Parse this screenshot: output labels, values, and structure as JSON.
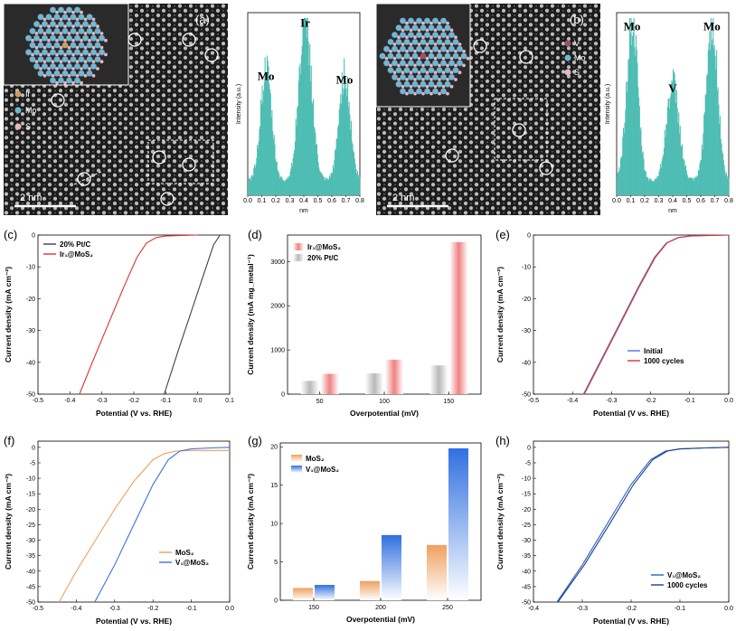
{
  "panels": {
    "a": {
      "label": "(a)",
      "scale_bar": "2 nm",
      "legend": [
        "Ir",
        "Mo",
        "S"
      ],
      "colors": {
        "Ir": "#c8a060",
        "Mo": "#6fb7d6",
        "S": "#e8b4c0"
      }
    },
    "b": {
      "label": "(b)",
      "scale_bar": "2 nm",
      "legend": [
        "V",
        "Mo",
        "S"
      ],
      "colors": {
        "V": "#9b4f6f",
        "Mo": "#6fb7d6",
        "S": "#e8b4c0"
      }
    },
    "c": {
      "label": "(c)"
    },
    "d": {
      "label": "(d)"
    },
    "e": {
      "label": "(e)"
    },
    "f": {
      "label": "(f)"
    },
    "g": {
      "label": "(g)"
    },
    "h": {
      "label": "(h)"
    }
  },
  "chart_data": [
    {
      "id": "a-profile",
      "type": "area",
      "xlabel": "nm",
      "ylabel": "Intensity (a.u.)",
      "xlim": [
        0.0,
        0.8
      ],
      "xticks": [
        "0.0",
        "0.1",
        "0.2",
        "0.3",
        "0.4",
        "0.5",
        "0.6",
        "0.7",
        "0.8"
      ],
      "peak_labels": [
        {
          "text": "Mo",
          "x": 0.13
        },
        {
          "text": "Ir",
          "x": 0.41
        },
        {
          "text": "Mo",
          "x": 0.69
        }
      ],
      "peaks": [
        {
          "x": 0.13,
          "h": 0.62,
          "w": 0.04
        },
        {
          "x": 0.41,
          "h": 0.92,
          "w": 0.045
        },
        {
          "x": 0.69,
          "h": 0.6,
          "w": 0.04
        }
      ],
      "color": "#4ebdb3"
    },
    {
      "id": "b-profile",
      "type": "area",
      "xlabel": "nm",
      "ylabel": "Intensity (a.u.)",
      "xlim": [
        0.0,
        0.8
      ],
      "xticks": [
        "0.0",
        "0.1",
        "0.2",
        "0.3",
        "0.4",
        "0.5",
        "0.6",
        "0.7",
        "0.8"
      ],
      "peak_labels": [
        {
          "text": "Mo",
          "x": 0.11
        },
        {
          "text": "V",
          "x": 0.4
        },
        {
          "text": "Mo",
          "x": 0.68
        }
      ],
      "peaks": [
        {
          "x": 0.11,
          "h": 0.9,
          "w": 0.04
        },
        {
          "x": 0.4,
          "h": 0.55,
          "w": 0.045
        },
        {
          "x": 0.68,
          "h": 0.9,
          "w": 0.04
        }
      ],
      "color": "#4ebdb3"
    },
    {
      "id": "c",
      "type": "line",
      "xlabel": "Potential (V vs. RHE)",
      "ylabel": "Current density (mA cm⁻²)",
      "xlim": [
        -0.5,
        0.1
      ],
      "ylim": [
        -50,
        0
      ],
      "xticks": [
        -0.5,
        -0.4,
        -0.3,
        -0.2,
        -0.1,
        0.0,
        0.1
      ],
      "xtick_labels": [
        "-0.5",
        "-0.4",
        "-0.3",
        "-0.2",
        "-0.1",
        "0.0",
        "0.1"
      ],
      "yticks": [
        -50,
        -40,
        -30,
        -20,
        -10,
        0
      ],
      "series": [
        {
          "name": "20% Pt/C",
          "color": "#404040",
          "x": [
            -0.105,
            -0.06,
            -0.02,
            0.02,
            0.05,
            0.07
          ],
          "y": [
            -50,
            -36,
            -24,
            -12,
            -3,
            0
          ]
        },
        {
          "name": "Ir₁@MoS₂",
          "color": "#e03030",
          "x": [
            -0.37,
            -0.33,
            -0.28,
            -0.23,
            -0.19,
            -0.16,
            -0.13,
            -0.1,
            -0.05,
            0.0
          ],
          "y": [
            -50,
            -40,
            -28,
            -16,
            -7,
            -2.5,
            -0.8,
            -0.3,
            -0.1,
            0
          ]
        }
      ]
    },
    {
      "id": "d",
      "type": "bar",
      "xlabel": "Overpotential (mV)",
      "ylabel": "Current density (mA mg_metal⁻¹)",
      "categories": [
        "50",
        "100",
        "150"
      ],
      "ylim": [
        0,
        3600
      ],
      "yticks": [
        0,
        1000,
        2000,
        3000
      ],
      "series": [
        {
          "name": "Ir₁@MoS₂",
          "color": "#f08080",
          "values": [
            460,
            780,
            3440
          ]
        },
        {
          "name": "20% Pt/C",
          "color": "#b8b8b8",
          "values": [
            300,
            470,
            650
          ]
        }
      ]
    },
    {
      "id": "e",
      "type": "line",
      "xlabel": "Potential (V vs. RHE)",
      "ylabel": "Current density (mA cm⁻²)",
      "xlim": [
        -0.5,
        0.0
      ],
      "ylim": [
        -50,
        0
      ],
      "xticks": [
        -0.5,
        -0.4,
        -0.3,
        -0.2,
        -0.1,
        0.0
      ],
      "xtick_labels": [
        "-0.5",
        "-0.4",
        "-0.3",
        "-0.2",
        "-0.1",
        "0.0"
      ],
      "yticks": [
        -50,
        -40,
        -30,
        -20,
        -10,
        0
      ],
      "series": [
        {
          "name": "Initial",
          "color": "#5070e0",
          "x": [
            -0.372,
            -0.33,
            -0.28,
            -0.23,
            -0.19,
            -0.16,
            -0.13,
            -0.1,
            -0.05,
            0.0
          ],
          "y": [
            -50,
            -40,
            -28,
            -16,
            -7,
            -2.5,
            -0.8,
            -0.3,
            -0.1,
            0
          ]
        },
        {
          "name": "1000 cycles",
          "color": "#e03030",
          "x": [
            -0.37,
            -0.328,
            -0.278,
            -0.228,
            -0.188,
            -0.158,
            -0.128,
            -0.1,
            -0.05,
            0.0
          ],
          "y": [
            -50,
            -40,
            -28,
            -16,
            -7,
            -2.5,
            -0.8,
            -0.3,
            -0.1,
            0
          ]
        }
      ]
    },
    {
      "id": "f",
      "type": "line",
      "xlabel": "Potential (V vs. RHE)",
      "ylabel": "Current density (mA cm⁻²)",
      "xlim": [
        -0.5,
        0.0
      ],
      "ylim": [
        -50,
        2
      ],
      "xticks": [
        -0.5,
        -0.4,
        -0.3,
        -0.2,
        -0.1,
        0.0
      ],
      "xtick_labels": [
        "-0.5",
        "-0.4",
        "-0.3",
        "-0.2",
        "-0.1",
        "0.0"
      ],
      "yticks": [
        -50,
        -45,
        -40,
        -35,
        -30,
        -25,
        -20,
        -15,
        -10,
        -5,
        0
      ],
      "series": [
        {
          "name": "MoS₂",
          "color": "#f0a060",
          "x": [
            -0.445,
            -0.4,
            -0.35,
            -0.3,
            -0.25,
            -0.2,
            -0.17,
            -0.14,
            -0.1,
            0.0
          ],
          "y": [
            -50,
            -40,
            -30,
            -20,
            -11,
            -4,
            -2,
            -1.2,
            -1,
            -1
          ]
        },
        {
          "name": "V₁@MoS₂",
          "color": "#4070e0",
          "x": [
            -0.352,
            -0.3,
            -0.25,
            -0.2,
            -0.16,
            -0.13,
            -0.1,
            -0.05,
            0.0
          ],
          "y": [
            -50,
            -38,
            -25,
            -12,
            -4,
            -1.2,
            -0.5,
            -0.2,
            0
          ]
        }
      ]
    },
    {
      "id": "g",
      "type": "bar",
      "xlabel": "Overpotential (mV)",
      "ylabel": "Current density (mA cm⁻²)",
      "categories": [
        "150",
        "200",
        "250"
      ],
      "ylim": [
        0,
        20.5
      ],
      "yticks": [
        0,
        5,
        10,
        15,
        20
      ],
      "series": [
        {
          "name": "MoS₂",
          "color": "#f0a060",
          "values": [
            1.6,
            2.5,
            7.2
          ]
        },
        {
          "name": "V₁@MoS₂",
          "color": "#3070e0",
          "values": [
            2.0,
            8.5,
            19.8
          ]
        }
      ]
    },
    {
      "id": "h",
      "type": "line",
      "xlabel": "Potential (V vs. RHE)",
      "ylabel": "Current density (mA cm⁻²)",
      "xlim": [
        -0.4,
        0.0
      ],
      "ylim": [
        -50,
        2
      ],
      "xticks": [
        -0.4,
        -0.3,
        -0.2,
        -0.1,
        0.0
      ],
      "xtick_labels": [
        "-0.4",
        "-0.3",
        "-0.2",
        "-0.1",
        "0.0"
      ],
      "yticks": [
        -50,
        -45,
        -40,
        -35,
        -30,
        -25,
        -20,
        -15,
        -10,
        -5,
        0
      ],
      "series": [
        {
          "name": "V₁@MoS₂",
          "color": "#2a5fc8",
          "x": [
            -0.352,
            -0.3,
            -0.25,
            -0.2,
            -0.16,
            -0.13,
            -0.1,
            -0.05,
            0.0
          ],
          "y": [
            -50,
            -38,
            -25,
            -12,
            -4,
            -1.2,
            -0.5,
            -0.2,
            0
          ]
        },
        {
          "name": "1000 cycles",
          "color": "#1a3f8a",
          "x": [
            -0.35,
            -0.296,
            -0.245,
            -0.195,
            -0.156,
            -0.126,
            -0.1,
            -0.05,
            0.0
          ],
          "y": [
            -50,
            -38,
            -25,
            -12,
            -4,
            -1.2,
            -0.5,
            -0.2,
            0
          ]
        }
      ]
    }
  ]
}
